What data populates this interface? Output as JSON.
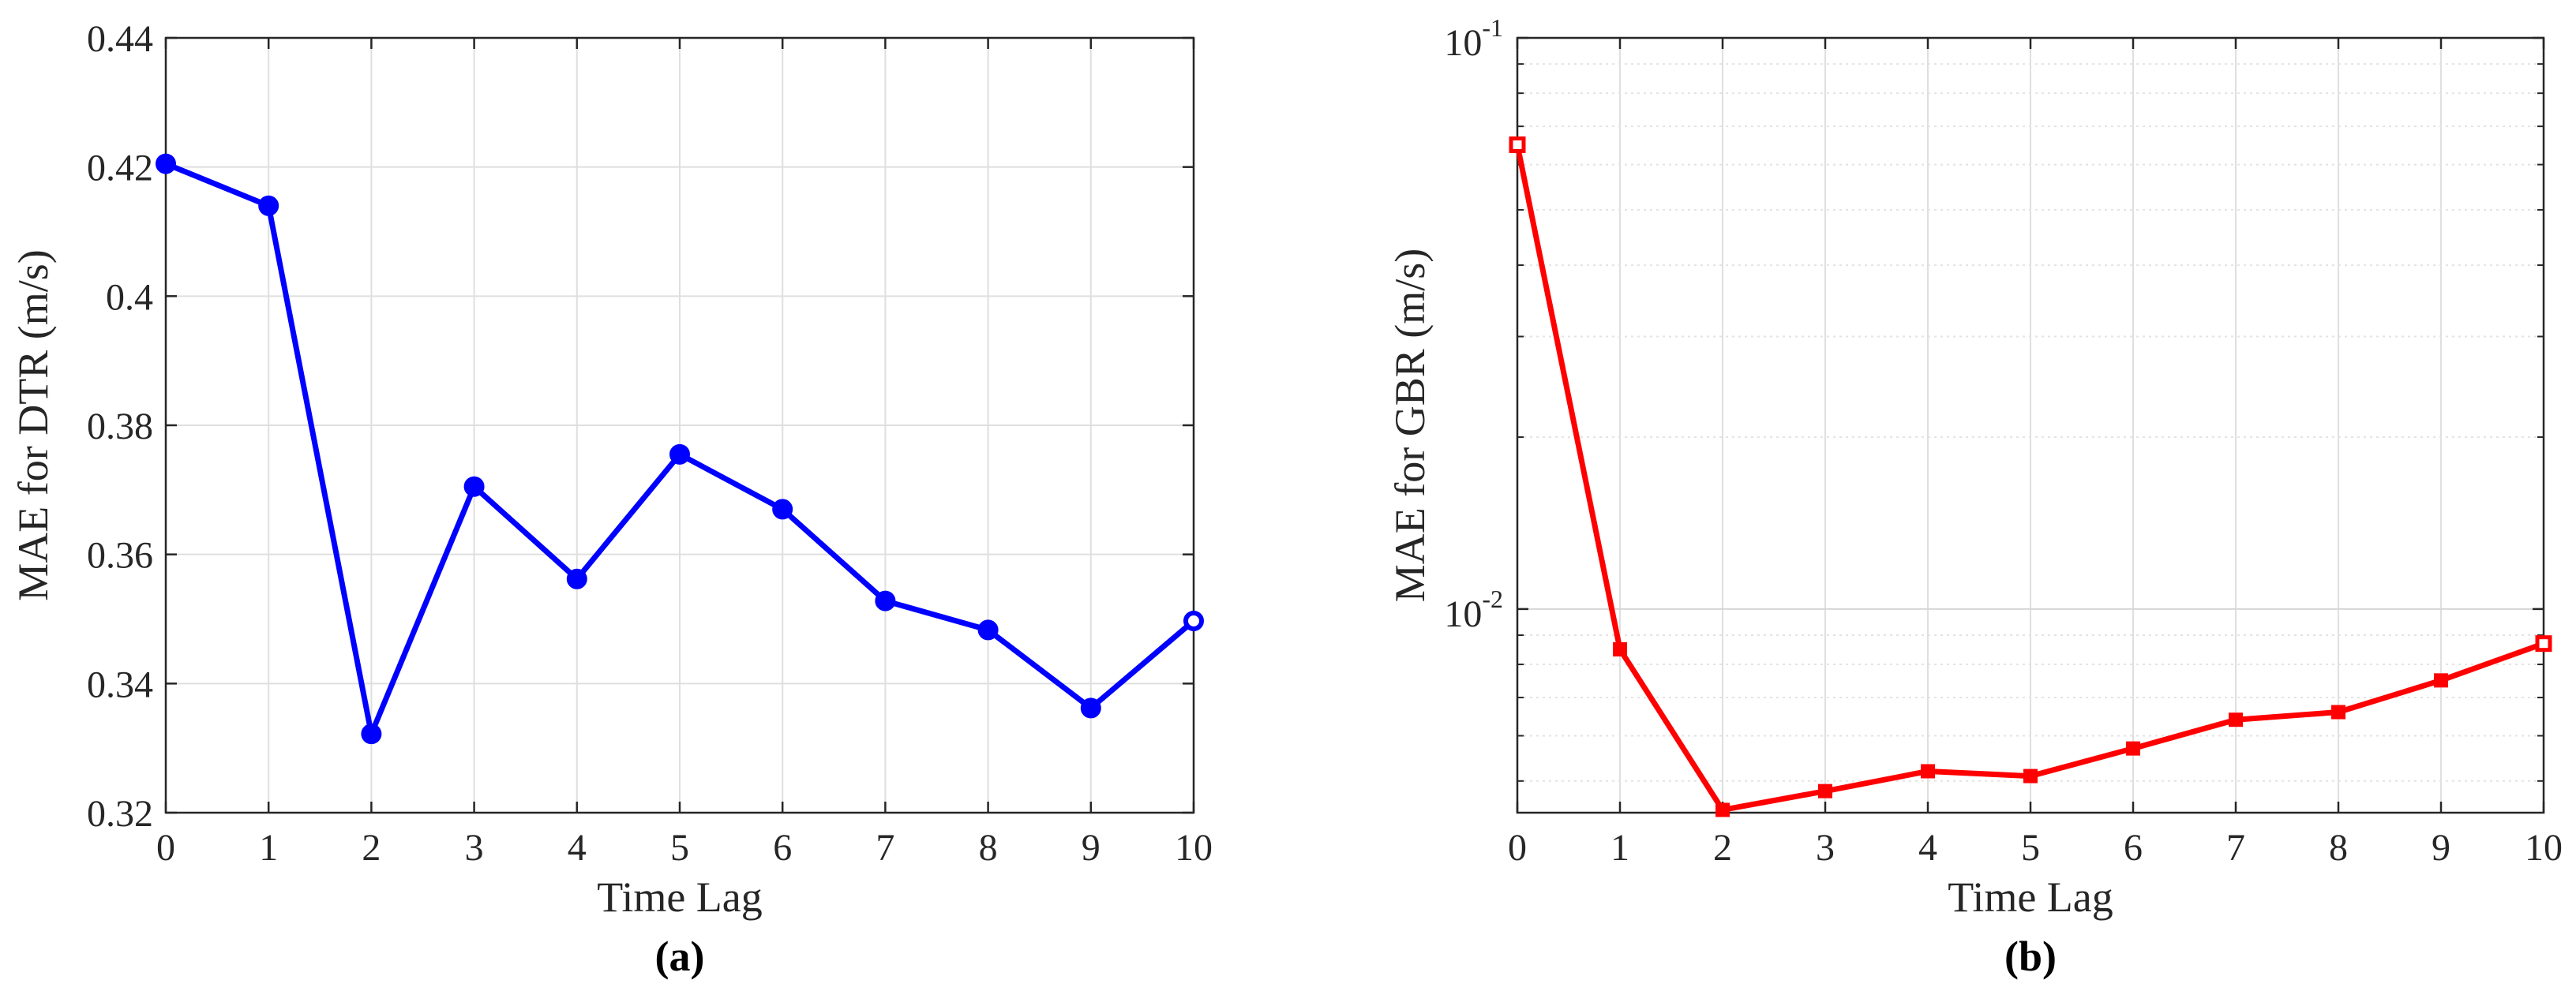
{
  "chart_data": [
    {
      "type": "line",
      "panel_label": "(a)",
      "xlabel": "Time Lag",
      "ylabel": "MAE for DTR (m/s)",
      "xlim": [
        0,
        10
      ],
      "ylim": [
        0.32,
        0.44
      ],
      "yscale": "linear",
      "grid": true,
      "x_ticks": [
        "0",
        "1",
        "2",
        "3",
        "4",
        "5",
        "6",
        "7",
        "8",
        "9",
        "10"
      ],
      "y_ticks": [
        "0.32",
        "0.34",
        "0.36",
        "0.38",
        "0.4",
        "0.42",
        "0.44"
      ],
      "marker": "circle",
      "series": [
        {
          "color": "#0000ff",
          "x": [
            0,
            1,
            2,
            3,
            4,
            5,
            6,
            7,
            8,
            9,
            10
          ],
          "values": [
            0.4205,
            0.414,
            0.3322,
            0.3705,
            0.3562,
            0.3755,
            0.367,
            0.3528,
            0.3483,
            0.3362,
            0.3497
          ]
        }
      ]
    },
    {
      "type": "line",
      "panel_label": "(b)",
      "xlabel": "Time Lag",
      "ylabel": "MAE for GBR (m/s)",
      "xlim": [
        0,
        10
      ],
      "ylim": [
        0.0044,
        0.1
      ],
      "yscale": "log",
      "grid": true,
      "x_ticks": [
        "0",
        "1",
        "2",
        "3",
        "4",
        "5",
        "6",
        "7",
        "8",
        "9",
        "10"
      ],
      "y_ticks": [
        {
          "value": 0.01,
          "base": "10",
          "exp": "-2"
        },
        {
          "value": 0.1,
          "base": "10",
          "exp": "-1"
        }
      ],
      "marker": "square",
      "series": [
        {
          "color": "#ff0000",
          "x": [
            0,
            1,
            2,
            3,
            4,
            5,
            6,
            7,
            8,
            9,
            10
          ],
          "values": [
            0.065,
            0.0085,
            0.00445,
            0.0048,
            0.0052,
            0.0051,
            0.0057,
            0.0064,
            0.0066,
            0.0075,
            0.0087
          ]
        }
      ]
    }
  ]
}
